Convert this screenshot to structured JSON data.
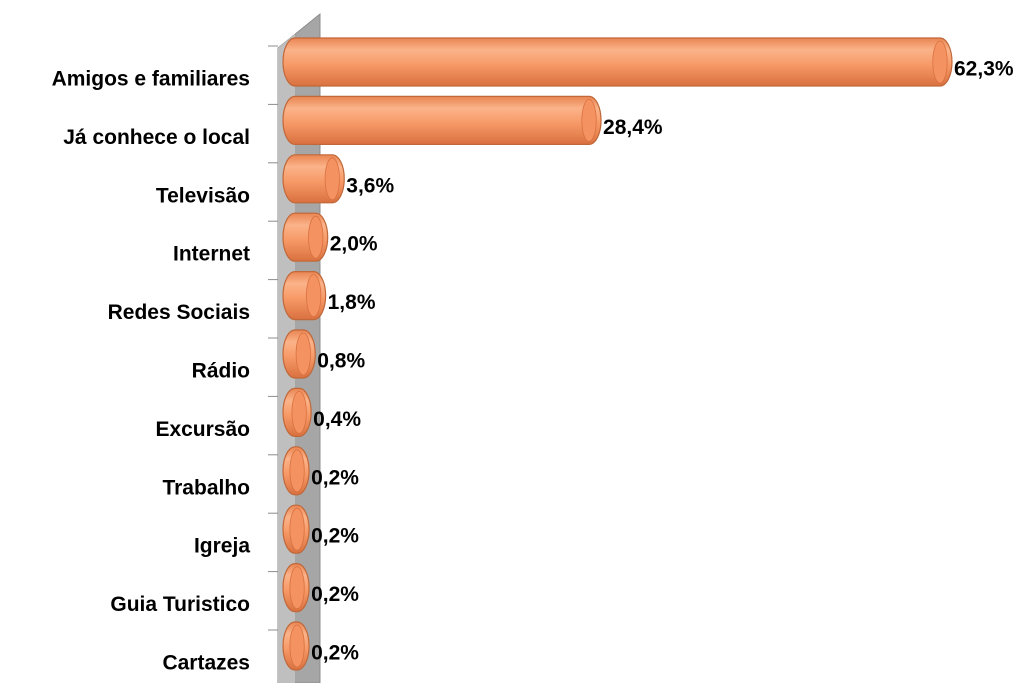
{
  "chart_data": {
    "type": "bar",
    "orientation": "horizontal",
    "categories": [
      "Amigos e familiares",
      "Já conhece o local",
      "Televisão",
      "Internet",
      "Redes Sociais",
      "Rádio",
      "Excursão",
      "Trabalho",
      "Igreja",
      "Guia Turistico",
      "Cartazes"
    ],
    "values": [
      62.3,
      28.4,
      3.6,
      2.0,
      1.8,
      0.8,
      0.4,
      0.2,
      0.2,
      0.2,
      0.2
    ],
    "value_labels": [
      "62,3%",
      "28,4%",
      "3,6%",
      "2,0%",
      "1,8%",
      "0,8%",
      "0,4%",
      "0,2%",
      "0,2%",
      "0,2%",
      "0,2%"
    ],
    "color": "#f79a68"
  }
}
